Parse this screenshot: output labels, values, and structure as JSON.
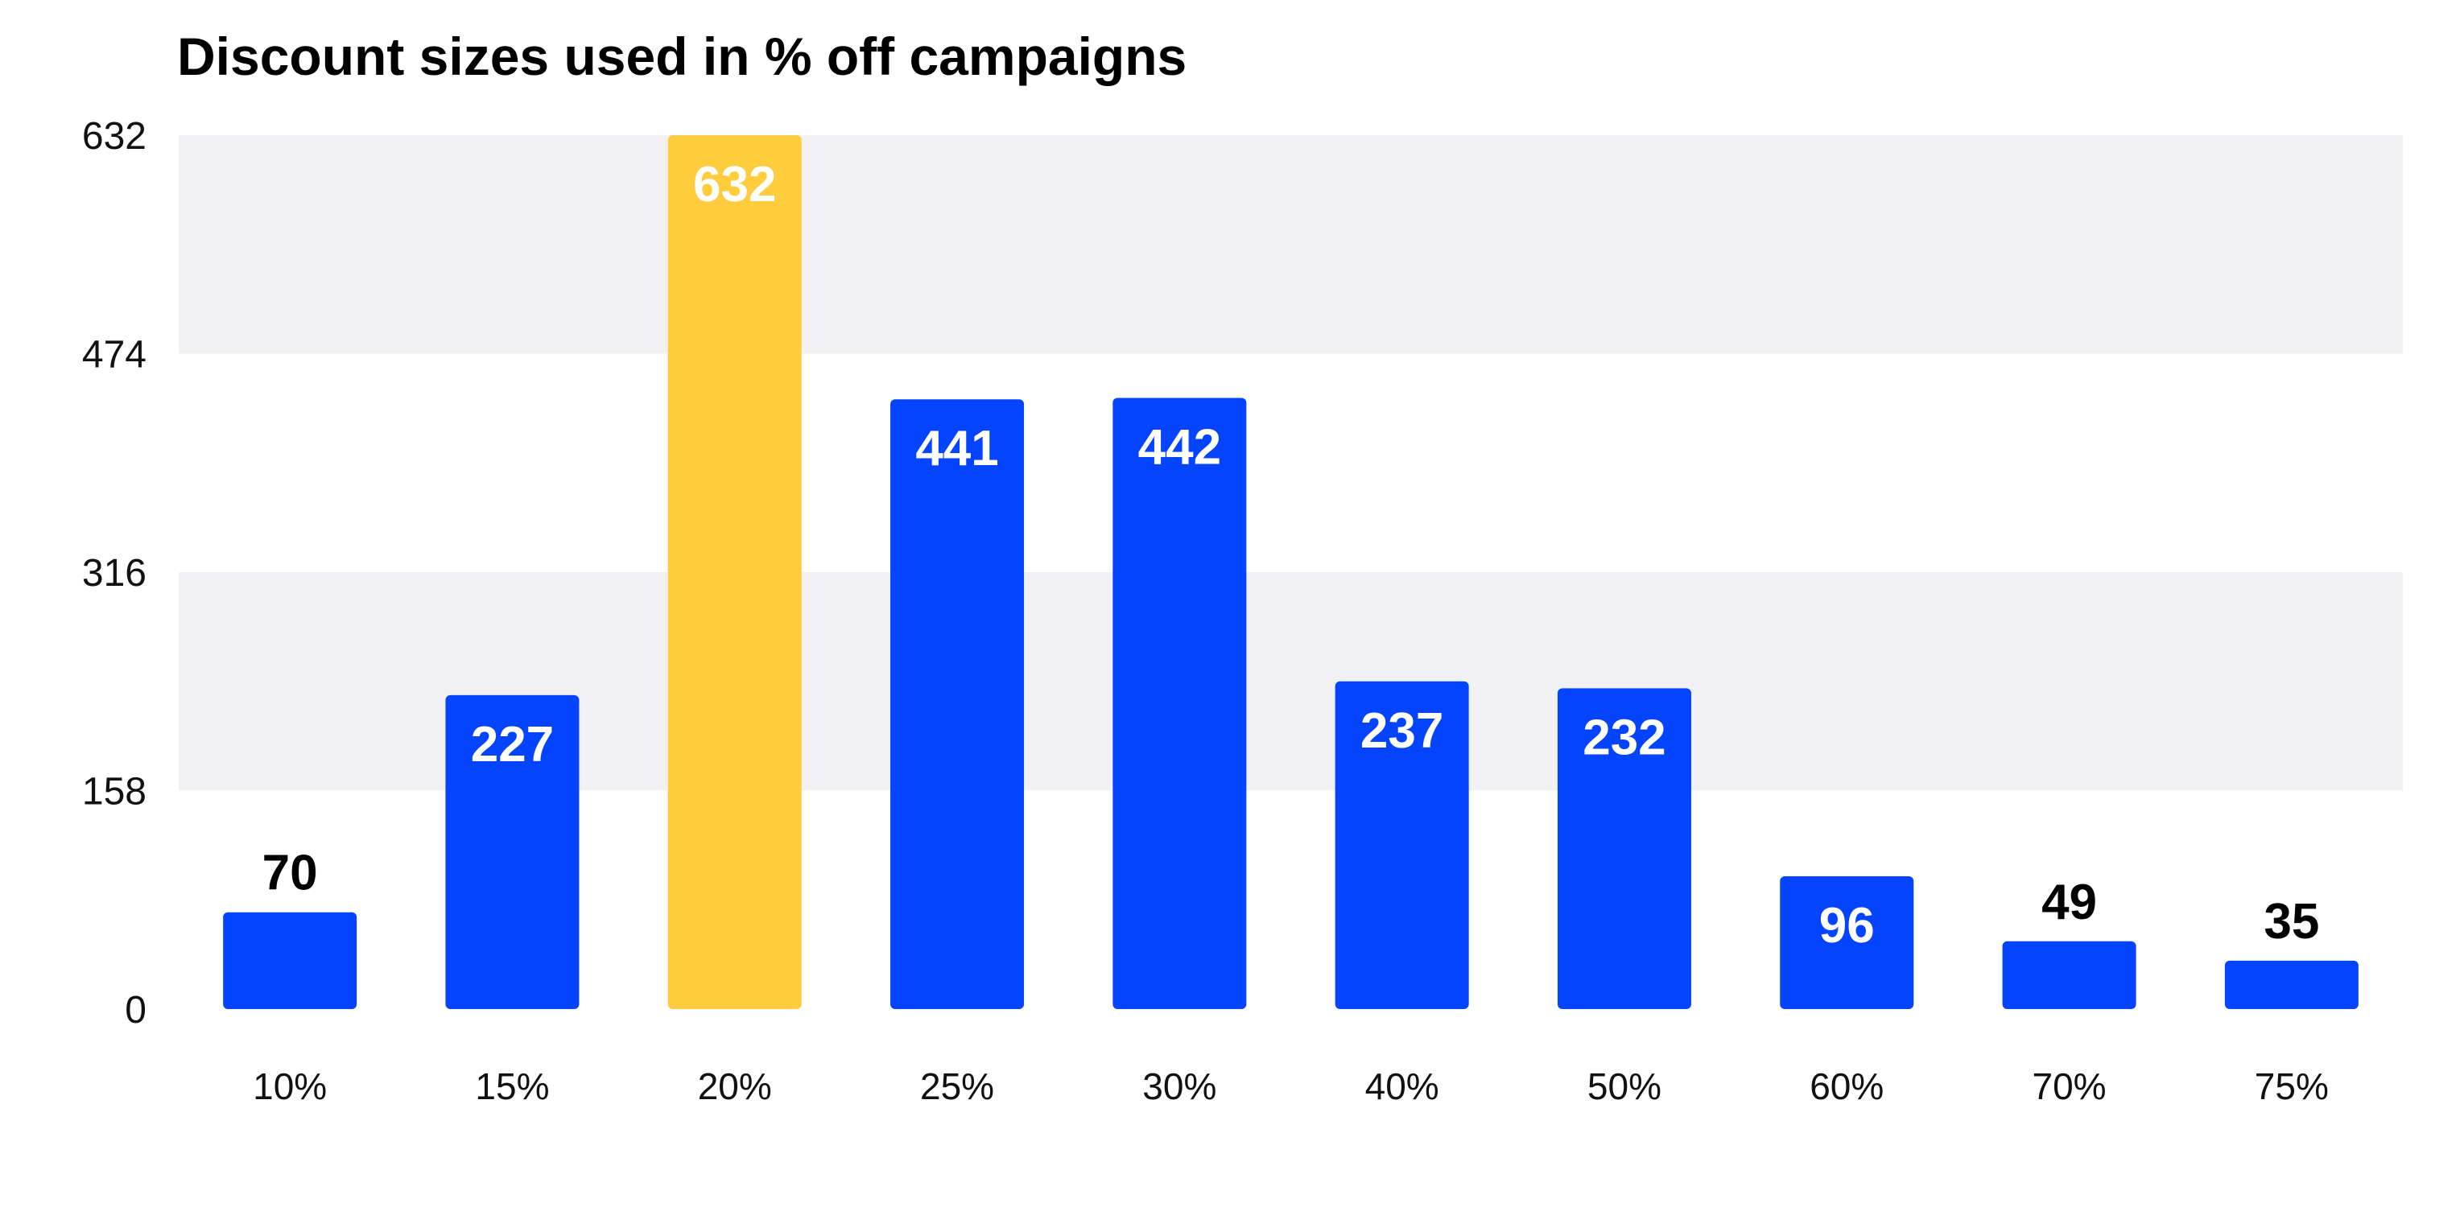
{
  "chart_data": {
    "type": "bar",
    "title": "Discount sizes used in % off campaigns",
    "xlabel": "",
    "ylabel": "",
    "categories": [
      "10%",
      "15%",
      "20%",
      "25%",
      "30%",
      "40%",
      "50%",
      "60%",
      "70%",
      "75%"
    ],
    "values": [
      70,
      227,
      632,
      441,
      442,
      237,
      232,
      96,
      49,
      35
    ],
    "highlight_category": "20%",
    "ylim": [
      0,
      632
    ],
    "yticks": [
      0,
      158,
      316,
      474,
      632
    ],
    "grid": "alternating horizontal bands",
    "legend": "none",
    "colors": {
      "bar": "#0544ff",
      "highlight": "#ffcc3d",
      "band": "#f1f1f3",
      "label_inside": "#ffffff",
      "label_outside": "#000000"
    }
  }
}
